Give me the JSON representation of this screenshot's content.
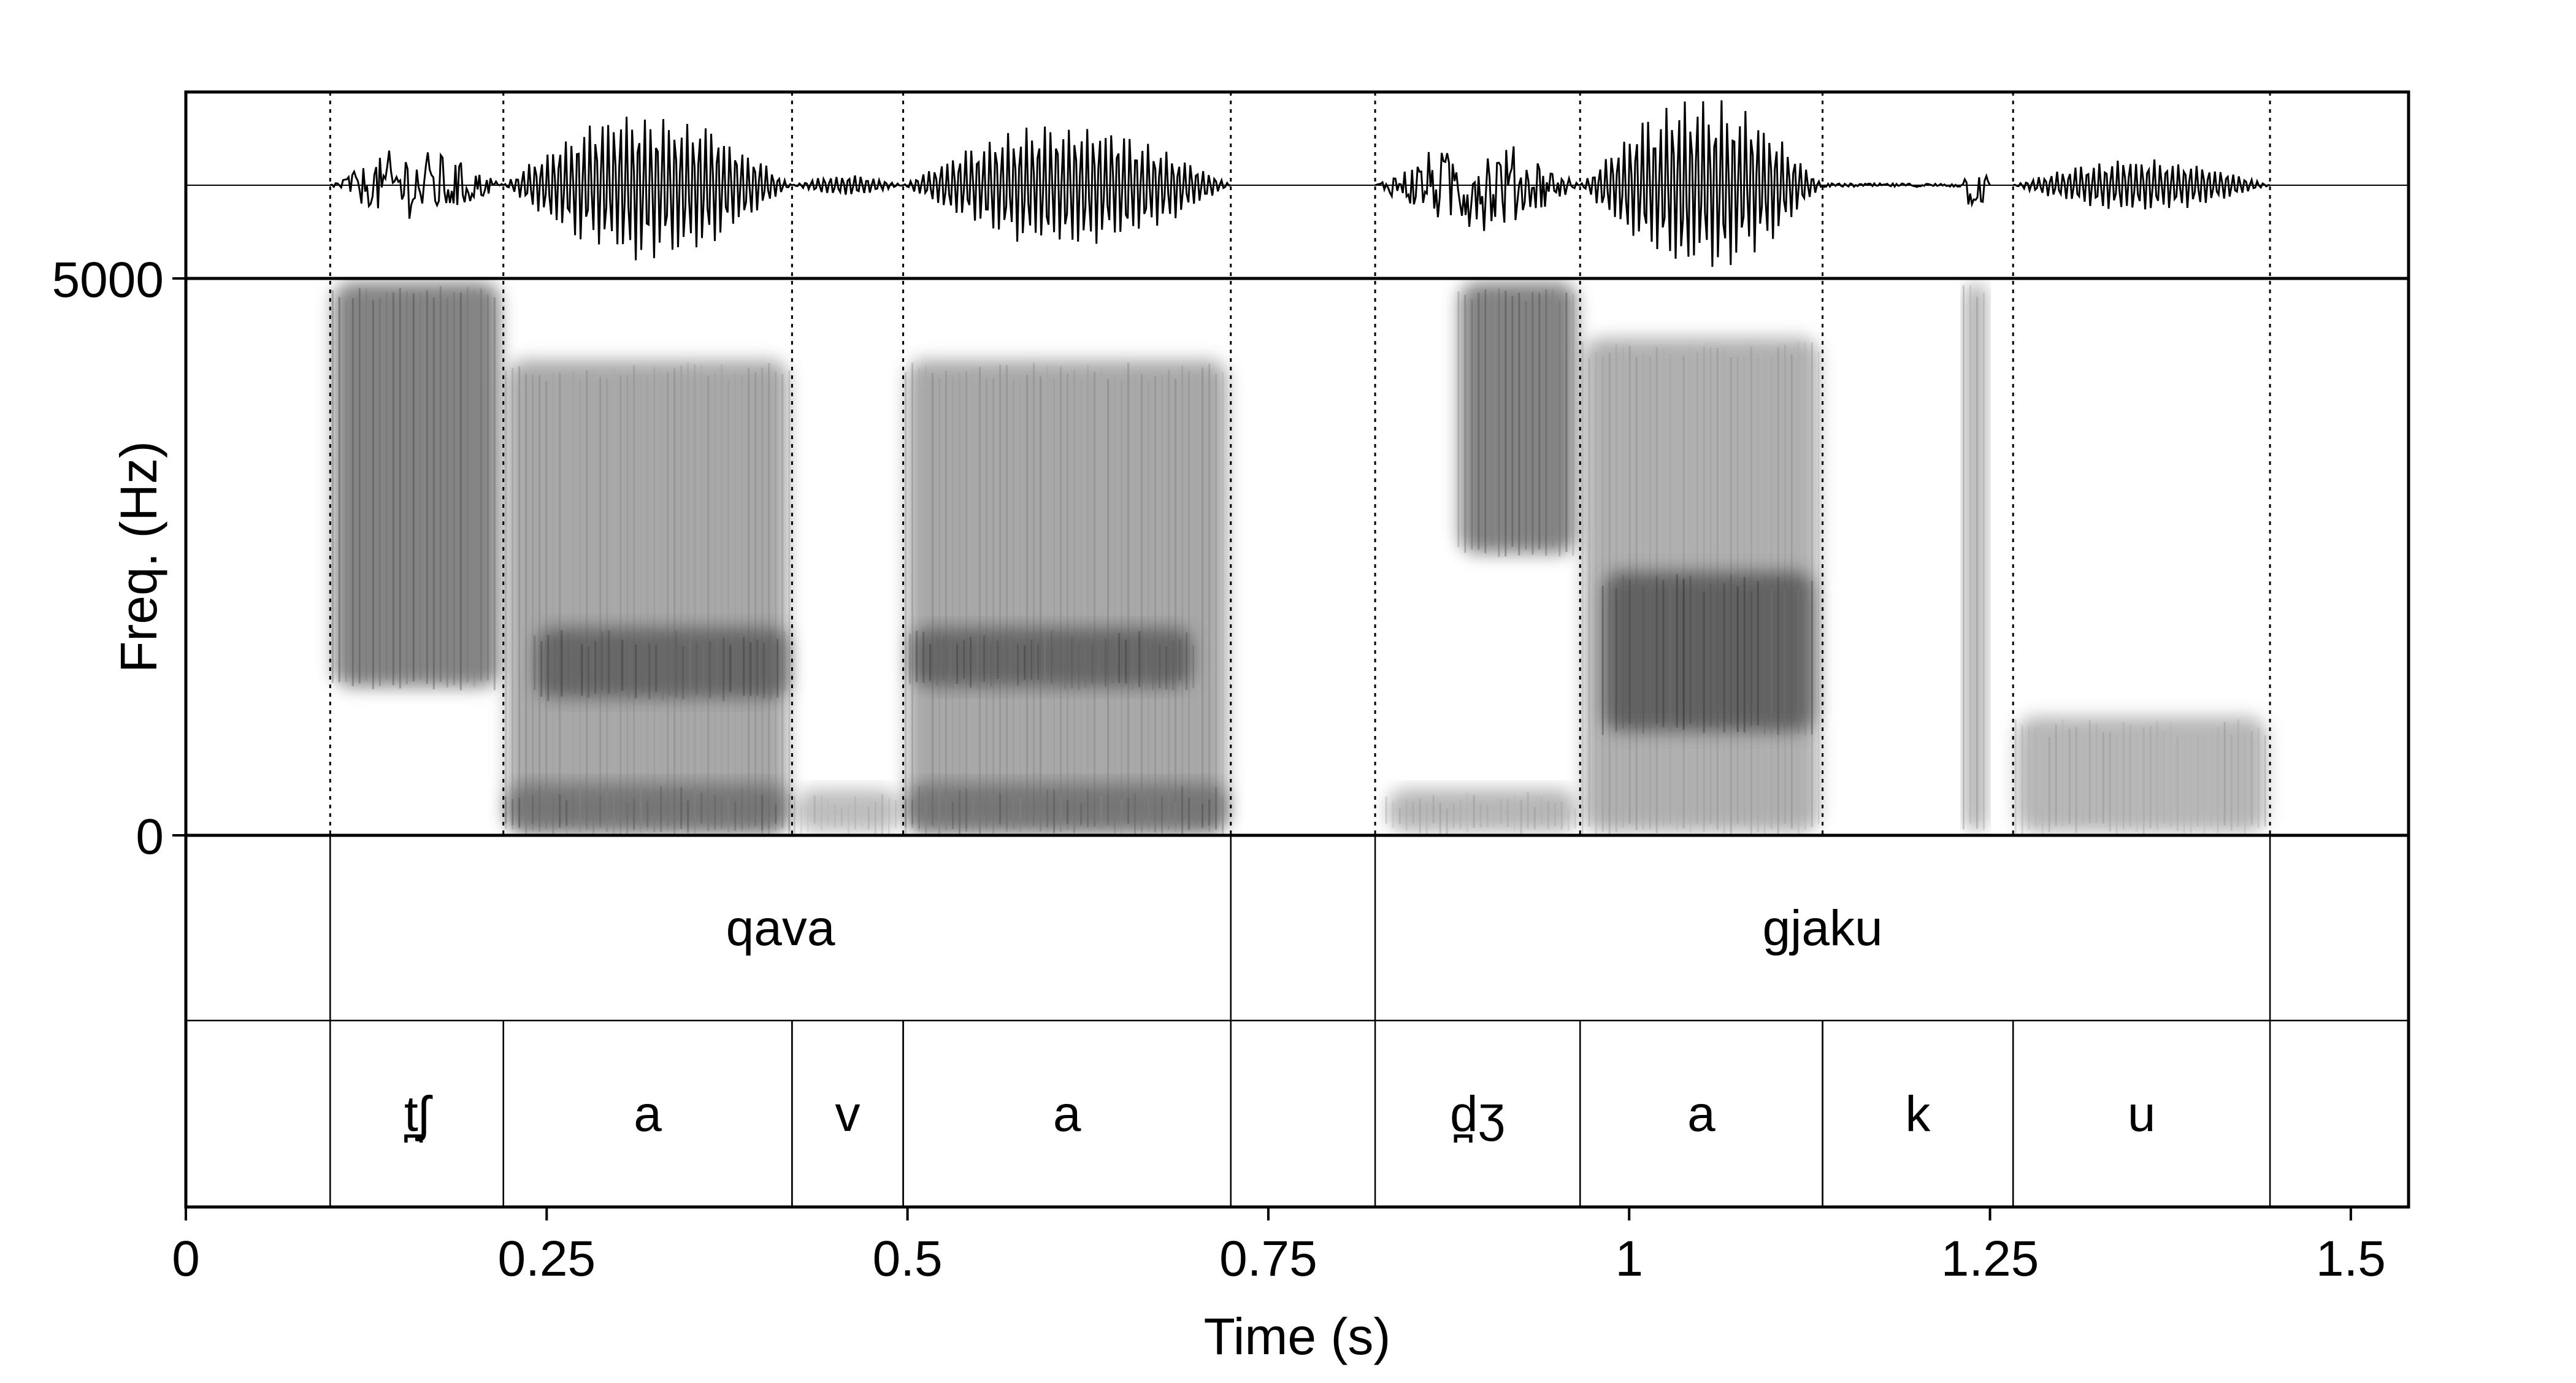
{
  "chart_data": {
    "type": "spectrogram",
    "xlabel": "Time (s)",
    "ylabel": "Freq. (Hz)",
    "xlim": [
      0,
      1.54
    ],
    "ylim": [
      0,
      5000
    ],
    "x_ticks": [
      {
        "value": 0,
        "label": "0"
      },
      {
        "value": 0.25,
        "label": "0.25"
      },
      {
        "value": 0.5,
        "label": "0.5"
      },
      {
        "value": 0.75,
        "label": "0.75"
      },
      {
        "value": 1,
        "label": "1"
      },
      {
        "value": 1.25,
        "label": "1.25"
      },
      {
        "value": 1.5,
        "label": "1.5"
      }
    ],
    "y_ticks": [
      {
        "value": 0,
        "label": "0"
      },
      {
        "value": 5000,
        "label": "5000"
      }
    ],
    "boundaries": [
      0.1,
      0.22,
      0.42,
      0.497,
      0.724,
      0.824,
      0.966,
      1.134,
      1.266,
      1.444
    ],
    "word_tier": [
      {
        "start": 0.1,
        "end": 0.724,
        "label": "qava"
      },
      {
        "start": 0.824,
        "end": 1.444,
        "label": "gjaku"
      }
    ],
    "phone_tier": [
      {
        "start": 0.1,
        "end": 0.22,
        "label": "t̪ʃ"
      },
      {
        "start": 0.22,
        "end": 0.42,
        "label": "a"
      },
      {
        "start": 0.42,
        "end": 0.497,
        "label": "v"
      },
      {
        "start": 0.497,
        "end": 0.724,
        "label": "a"
      },
      {
        "start": 0.824,
        "end": 0.966,
        "label": "d̪ʒ"
      },
      {
        "start": 0.966,
        "end": 1.134,
        "label": "a"
      },
      {
        "start": 1.134,
        "end": 1.266,
        "label": "k"
      },
      {
        "start": 1.266,
        "end": 1.444,
        "label": "u"
      }
    ],
    "waveform_segments": [
      {
        "start": 0.1,
        "end": 0.22,
        "amp": 0.45,
        "kind": "noise"
      },
      {
        "start": 0.22,
        "end": 0.42,
        "amp": 0.85,
        "kind": "voiced"
      },
      {
        "start": 0.42,
        "end": 0.497,
        "amp": 0.12,
        "kind": "voiced"
      },
      {
        "start": 0.497,
        "end": 0.724,
        "amp": 0.72,
        "kind": "voiced"
      },
      {
        "start": 0.824,
        "end": 0.966,
        "amp": 0.55,
        "kind": "noise"
      },
      {
        "start": 0.966,
        "end": 1.134,
        "amp": 1.0,
        "kind": "voiced"
      },
      {
        "start": 1.134,
        "end": 1.23,
        "amp": 0.02,
        "kind": "silence"
      },
      {
        "start": 1.23,
        "end": 1.25,
        "amp": 0.35,
        "kind": "noise"
      },
      {
        "start": 1.266,
        "end": 1.444,
        "amp": 0.3,
        "kind": "voiced"
      }
    ],
    "energy_regions": [
      {
        "t0": 0.1,
        "t1": 0.22,
        "f0": 1300,
        "f1": 5000,
        "darkness": 0.85
      },
      {
        "t0": 0.22,
        "t1": 0.42,
        "f0": 0,
        "f1": 4300,
        "darkness": 0.6
      },
      {
        "t0": 0.24,
        "t1": 0.42,
        "f0": 1200,
        "f1": 1900,
        "darkness": 0.9
      },
      {
        "t0": 0.22,
        "t1": 0.42,
        "f0": 0,
        "f1": 500,
        "darkness": 0.8
      },
      {
        "t0": 0.42,
        "t1": 0.497,
        "f0": 0,
        "f1": 450,
        "darkness": 0.45
      },
      {
        "t0": 0.497,
        "t1": 0.724,
        "f0": 0,
        "f1": 4300,
        "darkness": 0.6
      },
      {
        "t0": 0.5,
        "t1": 0.7,
        "f0": 1300,
        "f1": 1900,
        "darkness": 0.9
      },
      {
        "t0": 0.497,
        "t1": 0.724,
        "f0": 0,
        "f1": 500,
        "darkness": 0.8
      },
      {
        "t0": 0.83,
        "t1": 0.966,
        "f0": 0,
        "f1": 450,
        "darkness": 0.5
      },
      {
        "t0": 0.88,
        "t1": 0.966,
        "f0": 2500,
        "f1": 5000,
        "darkness": 0.85
      },
      {
        "t0": 0.966,
        "t1": 1.134,
        "f0": 0,
        "f1": 4500,
        "darkness": 0.55
      },
      {
        "t0": 0.98,
        "t1": 1.13,
        "f0": 900,
        "f1": 2400,
        "darkness": 0.95
      },
      {
        "t0": 1.23,
        "t1": 1.25,
        "f0": 0,
        "f1": 5000,
        "darkness": 0.55
      },
      {
        "t0": 1.266,
        "t1": 1.444,
        "f0": 0,
        "f1": 1100,
        "darkness": 0.5
      }
    ]
  }
}
